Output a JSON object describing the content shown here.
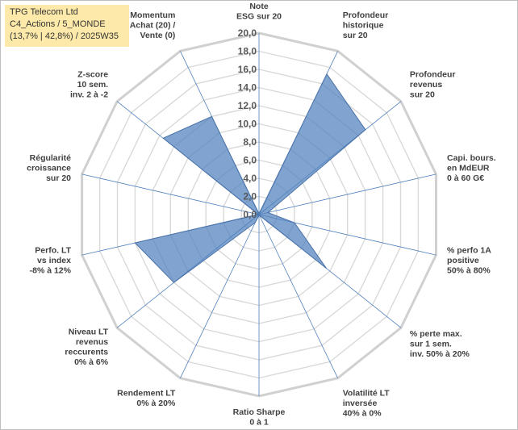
{
  "info_box": {
    "line1": "TPG Telecom Ltd",
    "line2": "C4_Actions / 5_MONDE",
    "line3": "(13,7% | 42,8%) / 2025W35"
  },
  "colors": {
    "fill": "#4f81bd",
    "stroke": "#4a72a8",
    "grid": "#d9d9d9",
    "spoke": "#4f81bd",
    "info_bg": "#fde9a9"
  },
  "chart_data": {
    "type": "radar",
    "title": "",
    "r_min": 0,
    "r_max": 20,
    "ticks": [
      "0,0",
      "2,0",
      "4,0",
      "6,0",
      "8,0",
      "10,0",
      "12,0",
      "14,0",
      "16,0",
      "18,0",
      "20,0"
    ],
    "tick_values": [
      0,
      2,
      4,
      6,
      8,
      10,
      12,
      14,
      16,
      18,
      20
    ],
    "axes": [
      {
        "label": [
          "Note",
          "ESG sur 20"
        ],
        "value": 0.1
      },
      {
        "label": [
          "Profondeur",
          "historique",
          "sur 20"
        ],
        "value": 17.2
      },
      {
        "label": [
          "Profondeur",
          "revenus",
          "sur 20"
        ],
        "value": 15.0
      },
      {
        "label": [
          "Capi. bours.",
          "en MdEUR",
          "0 à 60 G€"
        ],
        "value": 1.0
      },
      {
        "label": [
          "% perfo 1A",
          "positive",
          "50% à 80%"
        ],
        "value": 4.0
      },
      {
        "label": [
          "% perte max.",
          "sur 1 sem.",
          "inv. 50% à 20%"
        ],
        "value": 9.5
      },
      {
        "label": [
          "Volatilité LT",
          "inversée",
          "40% à 0%"
        ],
        "value": 0.1
      },
      {
        "label": [
          "Ratio Sharpe",
          "0 à 1"
        ],
        "value": 0.1
      },
      {
        "label": [
          "Rendement LT",
          "0% à 20%"
        ],
        "value": 1.0
      },
      {
        "label": [
          "Niveau LT",
          "revenus",
          "reccurents",
          "0% à 6%"
        ],
        "value": 12.0
      },
      {
        "label": [
          "Perfo. LT",
          "vs index",
          "-8% à 12%"
        ],
        "value": 14.0
      },
      {
        "label": [
          "Régularité",
          "croissance",
          "sur 20"
        ],
        "value": 0.1
      },
      {
        "label": [
          "Z-score",
          "10 sem.",
          "inv. 2 à -2"
        ],
        "value": 13.5
      },
      {
        "label": [
          "Momentum",
          "Achat (20) /",
          "Vente (0)"
        ],
        "value": 12.0
      }
    ]
  }
}
